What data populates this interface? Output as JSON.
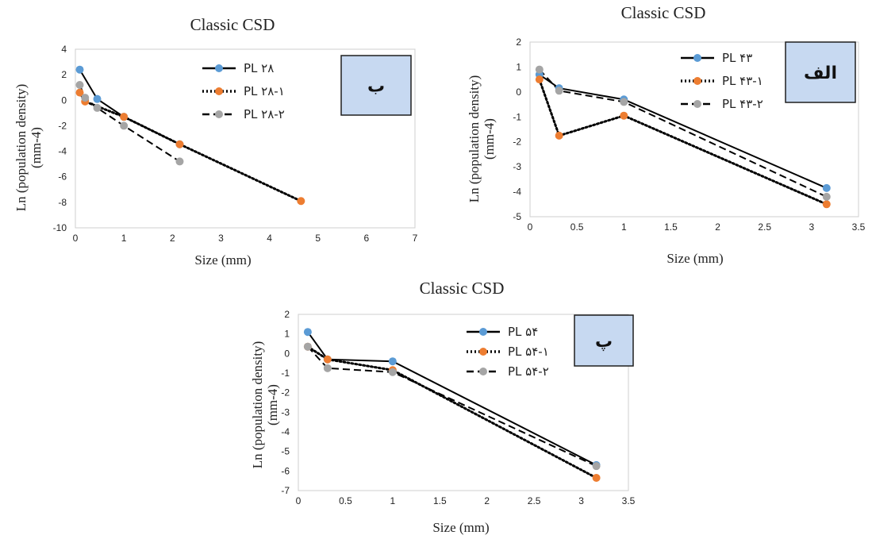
{
  "colors": {
    "series_1": "#5b9bd5",
    "series_2": "#ed7d31",
    "series_3": "#a5a5a5",
    "line": "#000000",
    "label_box_fill": "#c7d9f1",
    "label_box_border": "#1f1f1f"
  },
  "chart_data": [
    {
      "type": "line",
      "title": "Classic CSD",
      "xlabel": "Size (mm)",
      "ylabel": "Ln (population density) (mm-4)",
      "panel_label": "ب",
      "xlim": [
        0,
        7
      ],
      "ylim": [
        -10,
        4
      ],
      "xticks": [
        0,
        1,
        2,
        3,
        4,
        5,
        6,
        7
      ],
      "yticks": [
        4,
        2,
        0,
        -2,
        -4,
        -6,
        -8,
        -10
      ],
      "grid": false,
      "legend_position": "top-right",
      "series": [
        {
          "name": "PL ۲۸",
          "line_style": "solid",
          "marker_color": "series_1",
          "x": [
            0.09,
            0.45,
            1.0,
            2.15
          ],
          "y": [
            2.4,
            0.1,
            -1.3,
            -3.45
          ]
        },
        {
          "name": "PL ۲۸-۱",
          "line_style": "dotted",
          "marker_color": "series_2",
          "x": [
            0.09,
            0.2,
            1.0,
            2.15,
            4.65
          ],
          "y": [
            0.6,
            -0.1,
            -1.3,
            -3.45,
            -7.9
          ]
        },
        {
          "name": "PL ۲۸-۲",
          "line_style": "dashed",
          "marker_color": "series_3",
          "x": [
            0.09,
            0.2,
            0.45,
            1.0,
            2.15
          ],
          "y": [
            1.2,
            0.2,
            -0.6,
            -2.0,
            -4.8
          ]
        }
      ]
    },
    {
      "type": "line",
      "title": "Classic CSD",
      "xlabel": "Size (mm)",
      "ylabel": "Ln (population density) (mm-4)",
      "panel_label": "الف",
      "xlim": [
        0,
        3.5
      ],
      "ylim": [
        -5,
        2
      ],
      "xticks": [
        0,
        0.5,
        1,
        1.5,
        2,
        2.5,
        3,
        3.5
      ],
      "yticks": [
        2,
        1,
        0,
        -1,
        -2,
        -3,
        -4,
        -5
      ],
      "grid": false,
      "legend_position": "top-right",
      "series": [
        {
          "name": "PL ۴۳",
          "line_style": "solid",
          "marker_color": "series_1",
          "x": [
            0.1,
            0.31,
            1.0,
            3.16
          ],
          "y": [
            0.7,
            0.15,
            -0.3,
            -3.85
          ]
        },
        {
          "name": "PL ۴۳-۱",
          "line_style": "dotted",
          "marker_color": "series_2",
          "x": [
            0.1,
            0.31,
            1.0,
            3.16
          ],
          "y": [
            0.5,
            -1.75,
            -0.95,
            -4.5
          ]
        },
        {
          "name": "PL ۴۳-۲",
          "line_style": "dashed",
          "marker_color": "series_3",
          "x": [
            0.1,
            0.31,
            1.0,
            3.16
          ],
          "y": [
            0.9,
            0.05,
            -0.4,
            -4.2
          ]
        }
      ]
    },
    {
      "type": "line",
      "title": "Classic CSD",
      "xlabel": "Size (mm)",
      "ylabel": "Ln (population density) (mm-4)",
      "panel_label": "پ",
      "xlim": [
        0,
        3.5
      ],
      "ylim": [
        -7,
        2
      ],
      "xticks": [
        0,
        0.5,
        1,
        1.5,
        2,
        2.5,
        3,
        3.5
      ],
      "yticks": [
        2,
        1,
        0,
        -1,
        -2,
        -3,
        -4,
        -5,
        -6,
        -7
      ],
      "grid": false,
      "legend_position": "top-right",
      "series": [
        {
          "name": "PL ۵۴",
          "line_style": "solid",
          "marker_color": "series_1",
          "x": [
            0.1,
            0.31,
            1.0,
            3.16
          ],
          "y": [
            1.1,
            -0.3,
            -0.4,
            -5.7
          ]
        },
        {
          "name": "PL ۵۴-۱",
          "line_style": "dotted",
          "marker_color": "series_2",
          "x": [
            0.1,
            0.31,
            1.0,
            3.16
          ],
          "y": [
            0.35,
            -0.3,
            -0.85,
            -6.35
          ]
        },
        {
          "name": "PL ۵۴-۲",
          "line_style": "dashed",
          "marker_color": "series_3",
          "x": [
            0.1,
            0.31,
            1.0,
            3.16
          ],
          "y": [
            0.35,
            -0.75,
            -0.95,
            -5.75
          ]
        }
      ]
    }
  ]
}
